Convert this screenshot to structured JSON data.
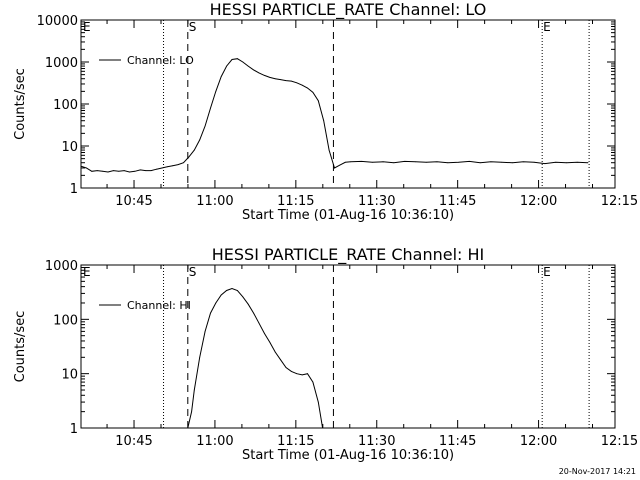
{
  "footer_stamp": "20-Nov-2017 14:21",
  "marker_labels": {
    "start": "S",
    "end": "E",
    "left_edge": "E"
  },
  "chart_data": [
    {
      "type": "line",
      "title": "HESSI PARTICLE_RATE Channel: LO",
      "xlabel": "Start Time (01-Aug-16 10:36:10)",
      "ylabel": "Counts/sec",
      "yscale": "log",
      "x_units": "minutes after 10:36:10",
      "xlim": [
        0,
        99
      ],
      "ylim": [
        1,
        10000
      ],
      "xticks": [
        {
          "x": 9.83,
          "label": "10:45"
        },
        {
          "x": 24.83,
          "label": "11:00"
        },
        {
          "x": 39.83,
          "label": "11:15"
        },
        {
          "x": 54.83,
          "label": "11:30"
        },
        {
          "x": 69.83,
          "label": "11:45"
        },
        {
          "x": 84.83,
          "label": "12:00"
        },
        {
          "x": 99.83,
          "label": "12:15"
        }
      ],
      "yticks": [
        {
          "y": 1,
          "label": "1"
        },
        {
          "y": 10,
          "label": "10"
        },
        {
          "y": 100,
          "label": "100"
        },
        {
          "y": 1000,
          "label": "1000"
        },
        {
          "y": 10000,
          "label": "10000"
        }
      ],
      "legend": {
        "position": "top-left",
        "entries": [
          "Channel: LO"
        ]
      },
      "dotted_lines_x": [
        15.3,
        85.5,
        94.2
      ],
      "dashed_lines_x": [
        19.8,
        46.8
      ],
      "series": [
        {
          "name": "Channel: LO",
          "x": [
            0,
            1,
            2,
            3,
            4,
            5,
            6,
            7,
            8,
            9,
            10,
            11,
            12,
            13,
            14,
            15,
            16,
            17,
            18,
            19,
            20,
            21,
            22,
            23,
            24,
            25,
            26,
            27,
            28,
            29,
            30,
            31,
            32,
            33,
            34,
            35,
            36,
            37,
            38,
            39,
            40,
            41,
            42,
            43,
            44,
            45,
            46,
            47,
            48,
            49,
            50,
            52,
            54,
            56,
            58,
            60,
            62,
            64,
            66,
            68,
            70,
            72,
            74,
            76,
            78,
            80,
            82,
            84,
            86,
            88,
            90,
            92,
            94
          ],
          "y": [
            3.3,
            3.0,
            2.5,
            2.6,
            2.5,
            2.4,
            2.6,
            2.5,
            2.6,
            2.4,
            2.5,
            2.7,
            2.6,
            2.6,
            2.8,
            3.0,
            3.2,
            3.4,
            3.6,
            4.0,
            5.5,
            8,
            14,
            30,
            80,
            200,
            450,
            800,
            1150,
            1200,
            1000,
            800,
            650,
            550,
            480,
            430,
            400,
            380,
            360,
            350,
            320,
            280,
            240,
            190,
            120,
            40,
            8,
            3,
            3.5,
            4.1,
            4.2,
            4.3,
            4.1,
            4.2,
            4.0,
            4.3,
            4.2,
            4.1,
            4.2,
            4.0,
            4.1,
            4.3,
            4.0,
            4.2,
            4.1,
            4.0,
            4.2,
            4.1,
            3.8,
            4.1,
            4.0,
            4.1,
            4.0
          ]
        }
      ]
    },
    {
      "type": "line",
      "title": "HESSI PARTICLE_RATE Channel: HI",
      "xlabel": "Start Time (01-Aug-16 10:36:10)",
      "ylabel": "Counts/sec",
      "yscale": "log",
      "x_units": "minutes after 10:36:10",
      "xlim": [
        0,
        99
      ],
      "ylim": [
        1,
        1000
      ],
      "xticks": [
        {
          "x": 9.83,
          "label": "10:45"
        },
        {
          "x": 24.83,
          "label": "11:00"
        },
        {
          "x": 39.83,
          "label": "11:15"
        },
        {
          "x": 54.83,
          "label": "11:30"
        },
        {
          "x": 69.83,
          "label": "11:45"
        },
        {
          "x": 84.83,
          "label": "12:00"
        },
        {
          "x": 99.83,
          "label": "12:15"
        }
      ],
      "yticks": [
        {
          "y": 1,
          "label": "1"
        },
        {
          "y": 10,
          "label": "10"
        },
        {
          "y": 100,
          "label": "100"
        },
        {
          "y": 1000,
          "label": "1000"
        }
      ],
      "legend": {
        "position": "top-left",
        "entries": [
          "Channel: HI"
        ]
      },
      "dotted_lines_x": [
        15.3,
        85.5,
        94.2
      ],
      "dashed_lines_x": [
        19.8,
        46.8
      ],
      "series": [
        {
          "name": "Channel: HI",
          "x": [
            19.8,
            20.5,
            21,
            22,
            23,
            24,
            25,
            26,
            27,
            28,
            29,
            30,
            31,
            32,
            33,
            34,
            35,
            36,
            37,
            38,
            39,
            40,
            41,
            42,
            43,
            44,
            44.8
          ],
          "y": [
            1,
            2,
            5,
            20,
            60,
            130,
            200,
            280,
            340,
            370,
            340,
            260,
            190,
            130,
            85,
            55,
            38,
            25,
            18,
            13,
            11,
            10,
            9.5,
            10,
            7,
            3,
            1
          ]
        }
      ]
    }
  ]
}
